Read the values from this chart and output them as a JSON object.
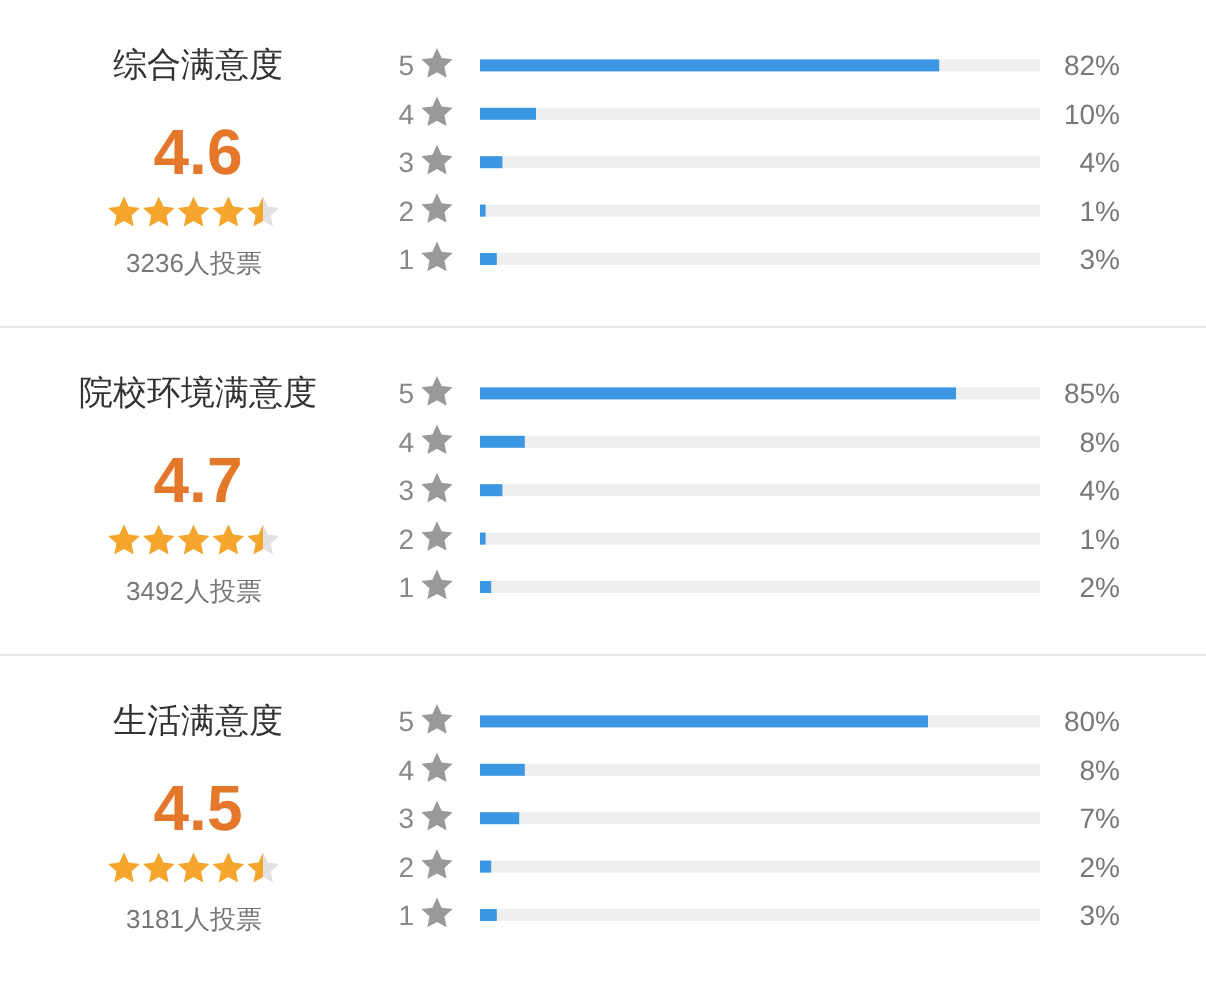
{
  "chart_data": [
    {
      "type": "bar",
      "orientation": "horizontal",
      "title": "综合满意度",
      "annotations": [
        "4.6",
        "3236人投票"
      ],
      "categories": [
        "5",
        "4",
        "3",
        "2",
        "1"
      ],
      "values": [
        82,
        10,
        4,
        1,
        3
      ],
      "value_labels": [
        "82%",
        "10%",
        "4%",
        "1%",
        "3%"
      ],
      "color": "#3c97e2",
      "xlim": [
        0,
        100
      ],
      "tick_labels": "y"
    },
    {
      "type": "bar",
      "orientation": "horizontal",
      "title": "院校环境满意度",
      "annotations": [
        "4.7",
        "3492人投票"
      ],
      "categories": [
        "5",
        "4",
        "3",
        "2",
        "1"
      ],
      "values": [
        85,
        8,
        4,
        1,
        2
      ],
      "value_labels": [
        "85%",
        "8%",
        "4%",
        "1%",
        "2%"
      ],
      "color": "#3c97e2",
      "xlim": [
        0,
        100
      ],
      "tick_labels": "y"
    },
    {
      "type": "bar",
      "orientation": "horizontal",
      "title": "生活满意度",
      "annotations": [
        "4.5",
        "3181人投票"
      ],
      "categories": [
        "5",
        "4",
        "3",
        "2",
        "1"
      ],
      "values": [
        80,
        8,
        7,
        2,
        3
      ],
      "value_labels": [
        "80%",
        "8%",
        "7%",
        "2%",
        "3%"
      ],
      "color": "#3c97e2",
      "xlim": [
        0,
        100
      ],
      "tick_labels": "y"
    }
  ]
}
